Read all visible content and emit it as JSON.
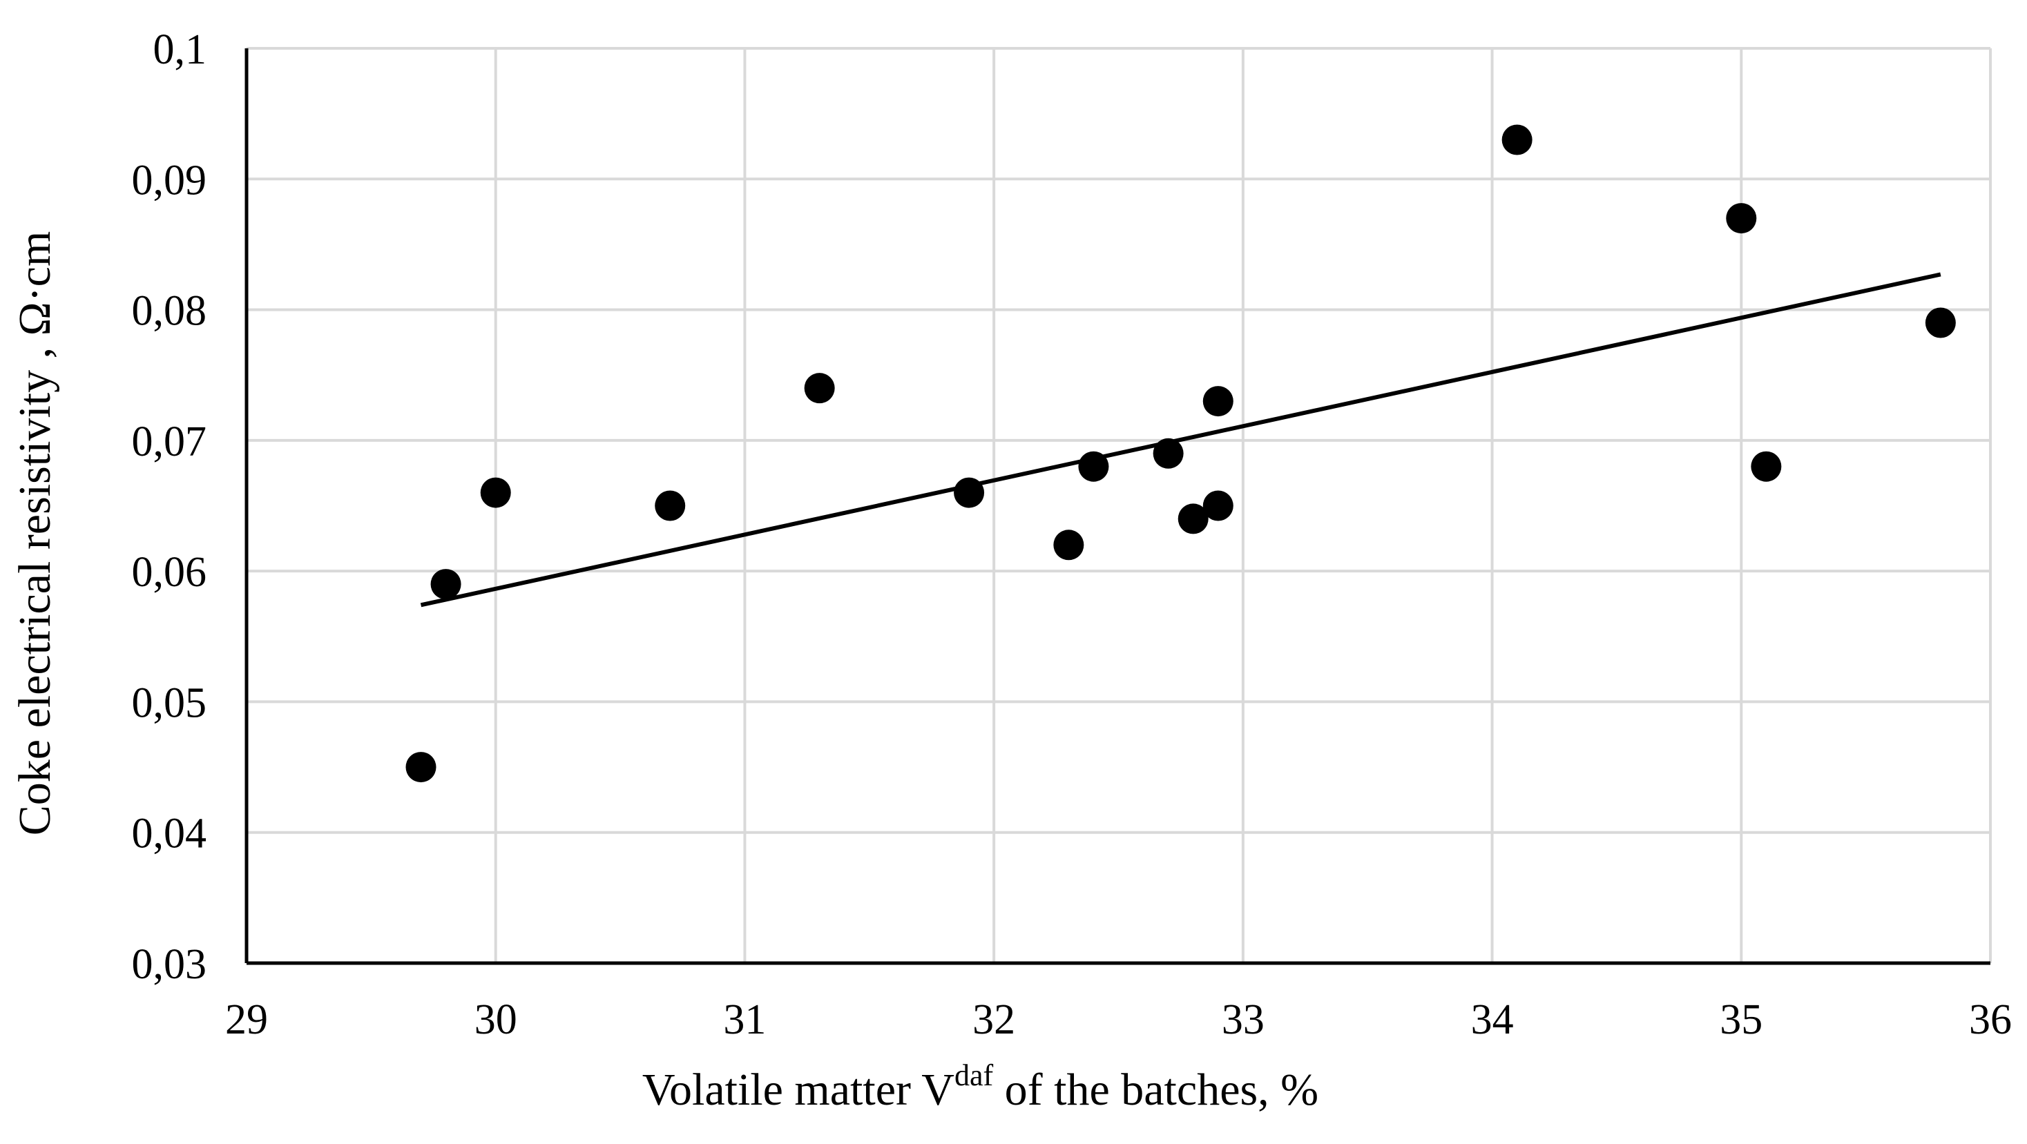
{
  "chart_data": {
    "type": "scatter",
    "title": "",
    "xlabel": {
      "before": "Volatile  matter  V",
      "superscript": "daf",
      "after": "  of  the batches, %"
    },
    "ylabel": "Coke electrical  resistivity , Ω·cm",
    "xlim": [
      29,
      36
    ],
    "ylim": [
      0.03,
      0.1
    ],
    "x_ticks": [
      {
        "value": 29,
        "label": "29"
      },
      {
        "value": 30,
        "label": "30"
      },
      {
        "value": 31,
        "label": "31"
      },
      {
        "value": 32,
        "label": "32"
      },
      {
        "value": 33,
        "label": "33"
      },
      {
        "value": 34,
        "label": "34"
      },
      {
        "value": 35,
        "label": "35"
      },
      {
        "value": 36,
        "label": "36"
      }
    ],
    "y_ticks": [
      {
        "value": 0.03,
        "label": "0,03"
      },
      {
        "value": 0.04,
        "label": "0,04"
      },
      {
        "value": 0.05,
        "label": "0,05"
      },
      {
        "value": 0.06,
        "label": "0,06"
      },
      {
        "value": 0.07,
        "label": "0,07"
      },
      {
        "value": 0.08,
        "label": "0,08"
      },
      {
        "value": 0.09,
        "label": "0,09"
      },
      {
        "value": 0.1,
        "label": "0,1"
      }
    ],
    "grid": true,
    "legend": "none",
    "series": [
      {
        "points": [
          {
            "x": 29.7,
            "y": 0.045
          },
          {
            "x": 29.8,
            "y": 0.059
          },
          {
            "x": 30.0,
            "y": 0.066
          },
          {
            "x": 30.7,
            "y": 0.065
          },
          {
            "x": 31.3,
            "y": 0.074
          },
          {
            "x": 31.9,
            "y": 0.066
          },
          {
            "x": 32.3,
            "y": 0.062
          },
          {
            "x": 32.4,
            "y": 0.068
          },
          {
            "x": 32.7,
            "y": 0.069
          },
          {
            "x": 32.8,
            "y": 0.064
          },
          {
            "x": 32.9,
            "y": 0.065
          },
          {
            "x": 32.9,
            "y": 0.073
          },
          {
            "x": 34.1,
            "y": 0.093
          },
          {
            "x": 35.0,
            "y": 0.087
          },
          {
            "x": 35.1,
            "y": 0.068
          },
          {
            "x": 35.8,
            "y": 0.079
          }
        ]
      }
    ],
    "trendline": {
      "type": "linear",
      "x_start": 29.7,
      "y_start": 0.0574,
      "x_end": 35.8,
      "y_end": 0.0827
    },
    "colors": {
      "marker": "#000000",
      "trendline": "#000000",
      "grid": "#d9d9d9",
      "axis": "#000000"
    }
  }
}
